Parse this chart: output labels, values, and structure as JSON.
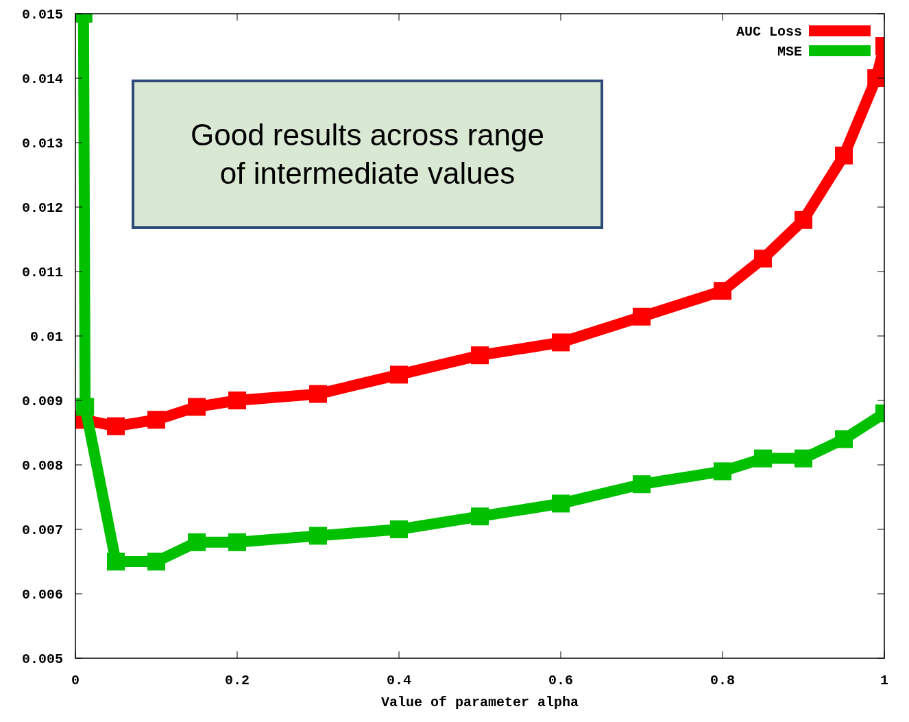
{
  "chart_data": {
    "type": "line",
    "xlabel": "Value of parameter alpha",
    "annotations": [
      "Good results across range of intermediate values"
    ],
    "xlim": [
      0,
      1
    ],
    "xticks": [
      0,
      0.2,
      0.4,
      0.6,
      0.8,
      1
    ],
    "ylim": [
      0.005,
      0.015
    ],
    "yticks": [
      0.005,
      0.006,
      0.007,
      0.008,
      0.009,
      0.01,
      0.011,
      0.012,
      0.013,
      0.014,
      0.015
    ],
    "grid": false,
    "legend": "top right",
    "marker": "square",
    "line_style": "solid",
    "series": [
      {
        "name": "AUC Loss",
        "color": "#ff0000",
        "x": [
          0,
          0.01,
          0.05,
          0.1,
          0.15,
          0.2,
          0.3,
          0.4,
          0.5,
          0.6,
          0.7,
          0.8,
          0.85,
          0.9,
          0.95,
          0.99,
          1
        ],
        "values": [
          0.0087,
          0.0087,
          0.0086,
          0.0087,
          0.0089,
          0.009,
          0.0091,
          0.0094,
          0.0097,
          0.0099,
          0.0103,
          0.0107,
          0.0112,
          0.0118,
          0.0128,
          0.014,
          0.0145
        ]
      },
      {
        "name": "MSE",
        "color": "#00c000",
        "x": [
          0.01,
          0.012,
          0.05,
          0.1,
          0.15,
          0.2,
          0.3,
          0.4,
          0.5,
          0.6,
          0.7,
          0.8,
          0.85,
          0.9,
          0.95,
          1
        ],
        "values": [
          0.015,
          0.0089,
          0.0065,
          0.0065,
          0.0068,
          0.0068,
          0.0069,
          0.007,
          0.0072,
          0.0074,
          0.0077,
          0.0079,
          0.0081,
          0.0081,
          0.0084,
          0.0088
        ]
      }
    ]
  }
}
